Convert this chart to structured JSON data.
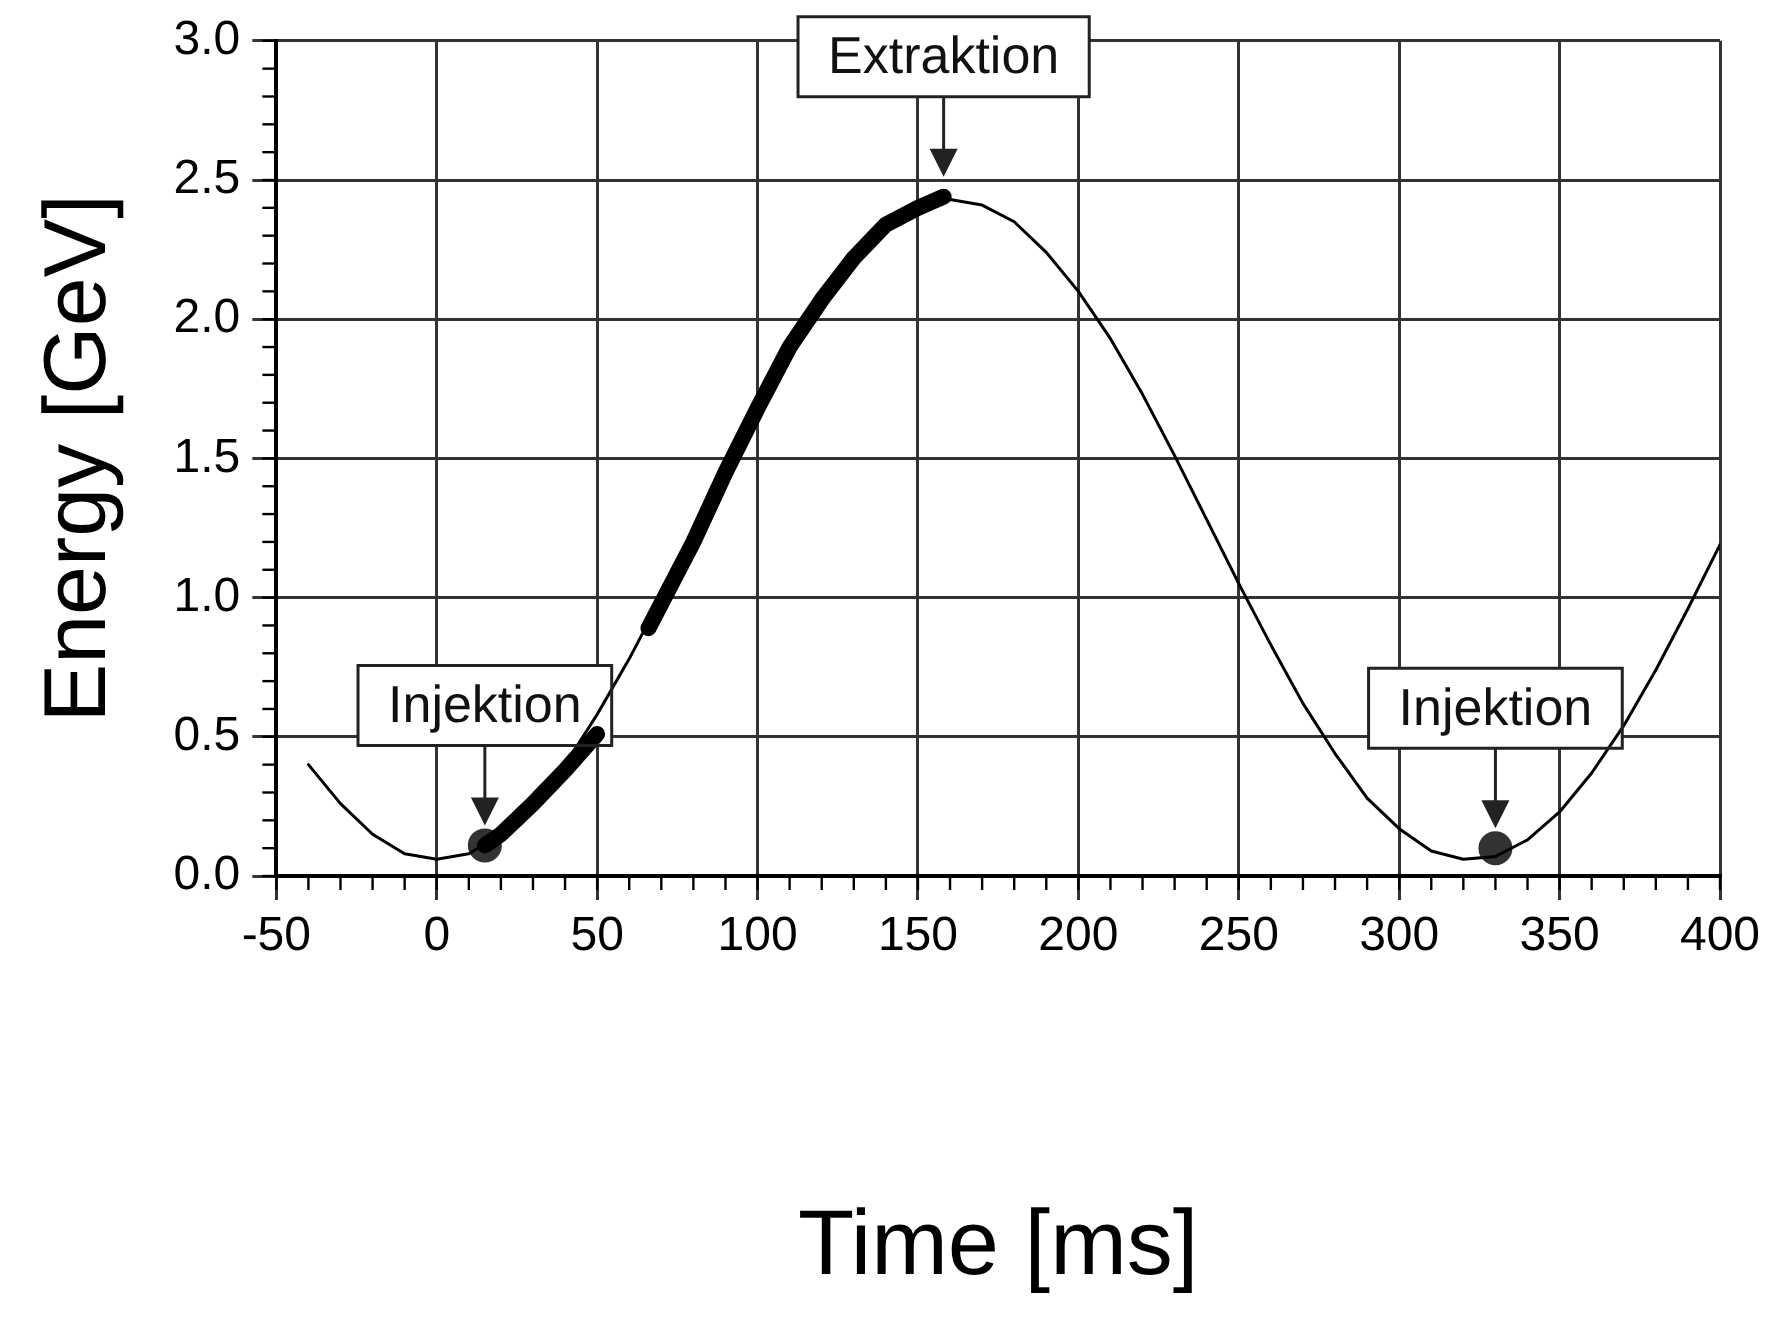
{
  "chart_data": {
    "type": "line",
    "xlabel": "Time [ms]",
    "ylabel": "Energy [GeV]",
    "xlim": [
      -50,
      400
    ],
    "xticks": [
      -50,
      0,
      50,
      100,
      150,
      200,
      250,
      300,
      350,
      400
    ],
    "ylim": [
      0,
      3
    ],
    "yticks": [
      {
        "value": 0,
        "label": "0.0"
      },
      {
        "value": 0.5,
        "label": "0.5"
      },
      {
        "value": 1,
        "label": "1.0"
      },
      {
        "value": 1.5,
        "label": "1.5"
      },
      {
        "value": 2,
        "label": "2.0"
      },
      {
        "value": 2.5,
        "label": "2.5"
      },
      {
        "value": 3,
        "label": "3.0"
      }
    ],
    "grid": true,
    "legend": false,
    "marker": "none",
    "line_style": "solid",
    "series": [
      {
        "color": "#000000",
        "x": [
          -40,
          -30,
          -20,
          -10,
          0,
          10,
          20,
          30,
          40,
          50,
          60,
          70,
          80,
          90,
          100,
          110,
          120,
          130,
          140,
          150,
          160,
          170,
          180,
          190,
          200,
          210,
          220,
          230,
          240,
          250,
          260,
          270,
          280,
          290,
          300,
          310,
          320,
          330,
          340,
          350,
          360,
          370,
          380,
          390,
          400
        ],
        "values": [
          0.4,
          0.26,
          0.15,
          0.08,
          0.06,
          0.08,
          0.15,
          0.26,
          0.4,
          0.58,
          0.78,
          1.0,
          1.23,
          1.46,
          1.69,
          1.89,
          2.07,
          2.22,
          2.33,
          2.4,
          2.43,
          2.41,
          2.35,
          2.24,
          2.1,
          1.93,
          1.73,
          1.51,
          1.28,
          1.05,
          0.83,
          0.62,
          0.44,
          0.28,
          0.17,
          0.09,
          0.06,
          0.07,
          0.13,
          0.23,
          0.37,
          0.54,
          0.74,
          0.96,
          1.19
        ]
      },
      {
        "color": "#000000",
        "x": [
          15,
          20,
          30,
          40,
          50,
          58,
          66,
          80,
          90,
          100,
          110,
          120,
          130,
          140,
          150,
          158
        ],
        "values": [
          0.11,
          0.15,
          0.26,
          0.38,
          0.51,
          null,
          0.89,
          1.2,
          1.45,
          1.68,
          1.9,
          2.07,
          2.22,
          2.34,
          2.4,
          2.44
        ]
      },
      {
        "type": "scatter",
        "marker": "circle",
        "color": "#333333",
        "x": [
          15,
          330
        ],
        "values": [
          0.11,
          0.1
        ]
      }
    ],
    "annotations": [
      {
        "text": "Injektion",
        "x": 15,
        "y": 0.11
      },
      {
        "text": "Extraktion",
        "x": 158,
        "y": 2.44
      },
      {
        "text": "Injektion",
        "x": 330,
        "y": 0.1
      }
    ]
  }
}
